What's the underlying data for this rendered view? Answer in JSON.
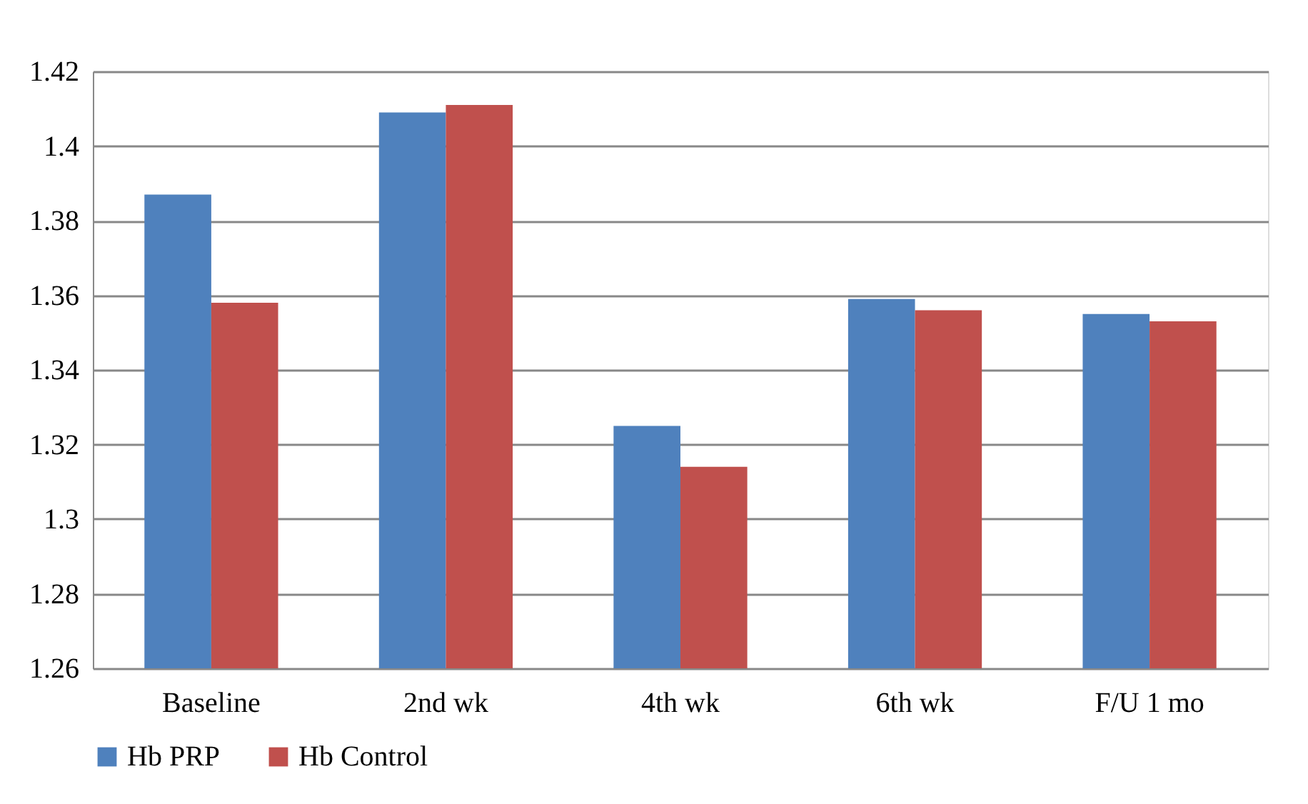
{
  "chart_data": {
    "type": "bar",
    "categories": [
      "Baseline",
      "2nd wk",
      "4th wk",
      "6th wk",
      "F/U 1 mo"
    ],
    "series": [
      {
        "name": "Hb PRP",
        "color": "#4f81bd",
        "values": [
          1.387,
          1.409,
          1.325,
          1.359,
          1.355
        ]
      },
      {
        "name": "Hb Control",
        "color": "#c0504d",
        "values": [
          1.358,
          1.411,
          1.314,
          1.356,
          1.353
        ]
      }
    ],
    "ylim": [
      1.26,
      1.42
    ],
    "yticks": [
      1.26,
      1.28,
      1.3,
      1.32,
      1.34,
      1.36,
      1.38,
      1.4,
      1.42
    ],
    "grid": "y",
    "legend": "bottom"
  }
}
